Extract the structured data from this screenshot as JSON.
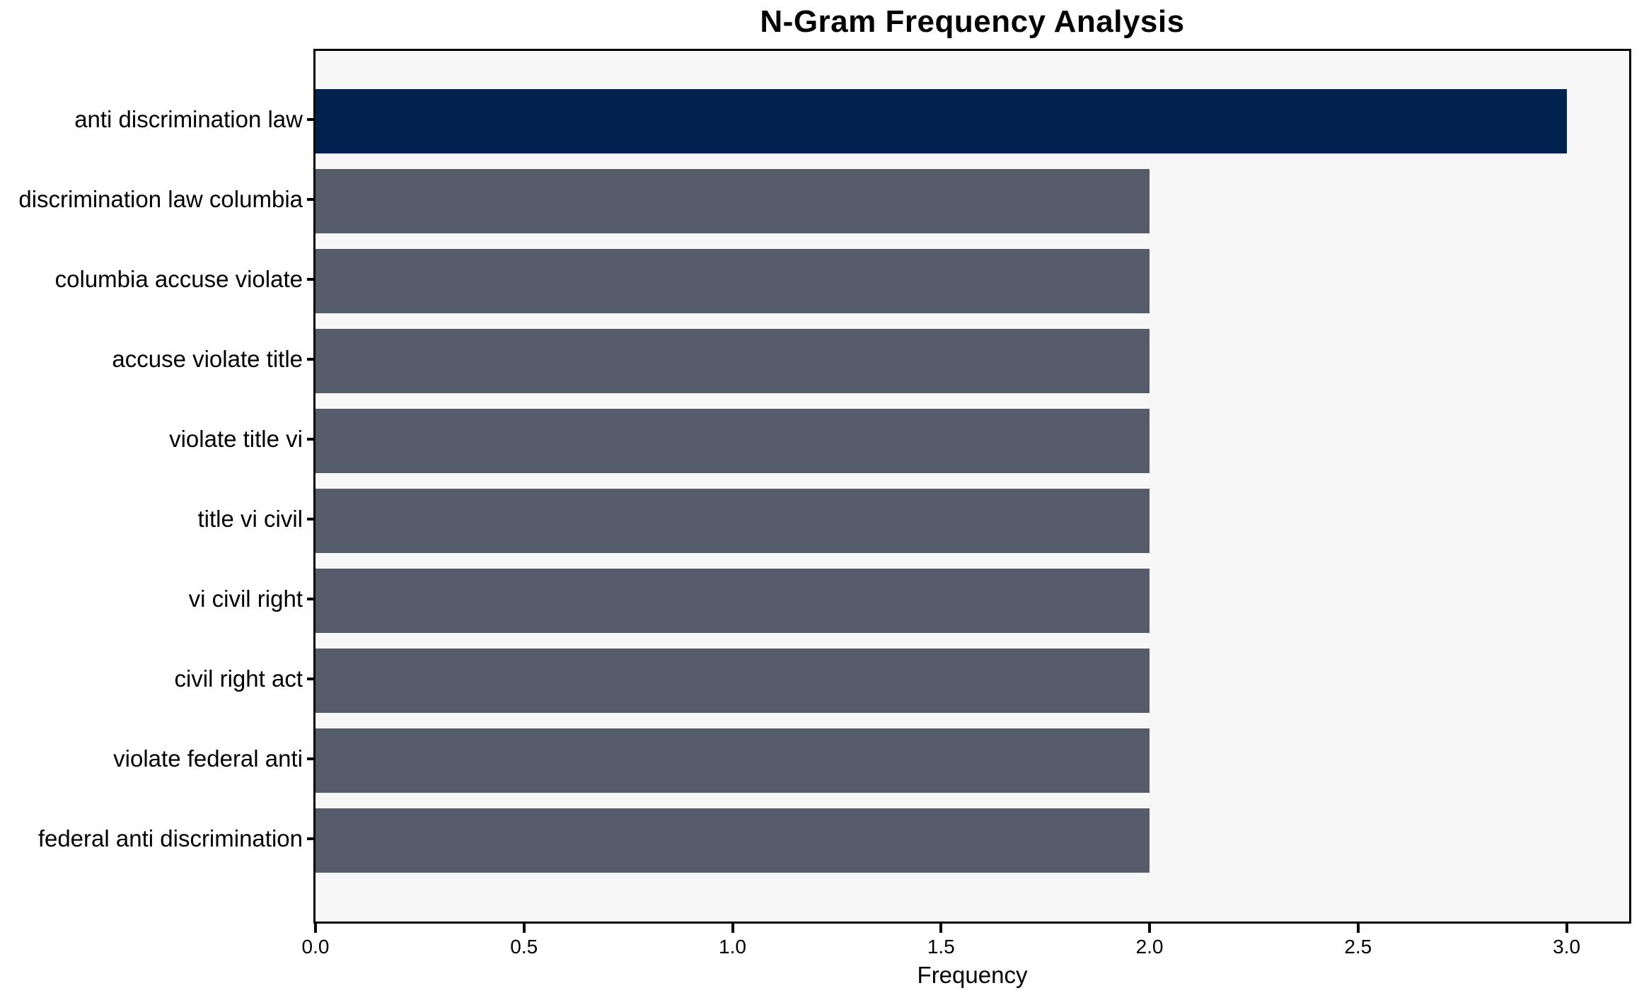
{
  "chart_data": {
    "type": "bar",
    "orientation": "horizontal",
    "title": "N-Gram Frequency Analysis",
    "xlabel": "Frequency",
    "ylabel": "",
    "categories": [
      "anti discrimination law",
      "discrimination law columbia",
      "columbia accuse violate",
      "accuse violate title",
      "violate title vi",
      "title vi civil",
      "vi civil right",
      "civil right act",
      "violate federal anti",
      "federal anti discrimination"
    ],
    "values": [
      3,
      2,
      2,
      2,
      2,
      2,
      2,
      2,
      2,
      2
    ],
    "xlim": [
      0,
      3.15
    ],
    "xtick_values": [
      0,
      0.5,
      1,
      1.5,
      2,
      2.5,
      3
    ],
    "xtick_labels": [
      "0.0",
      "0.5",
      "1.0",
      "1.5",
      "2.0",
      "2.5",
      "3.0"
    ],
    "grid": false,
    "legend": false,
    "colors": {
      "bar_max": "#01224e",
      "bar": "#575c6b",
      "plot_bg": "#f7f7f8",
      "figure_bg": "#ffffff",
      "axis": "#000000"
    }
  }
}
